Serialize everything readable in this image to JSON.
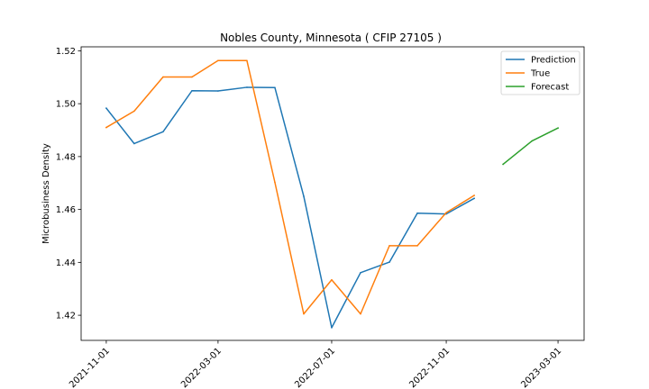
{
  "chart_data": {
    "type": "line",
    "title": "Nobles County, Minnesota ( CFIP 27105 )",
    "xlabel": "",
    "ylabel": "Microbusiness Density",
    "x_ticks": [
      "2021-11-01",
      "2022-03-01",
      "2022-07-01",
      "2022-11-01",
      "2023-03-01"
    ],
    "y_ticks": [
      "1.42",
      "1.44",
      "1.46",
      "1.48",
      "1.50",
      "1.52"
    ],
    "ylim": [
      1.4105,
      1.5215
    ],
    "xlim": [
      "2021-10-05",
      "2023-03-29"
    ],
    "grid": false,
    "legend_position": "top-right",
    "series": [
      {
        "name": "Prediction",
        "color": "#1f77b4",
        "x": [
          "2021-11-01",
          "2021-12-01",
          "2022-01-01",
          "2022-02-01",
          "2022-03-01",
          "2022-04-01",
          "2022-05-01",
          "2022-06-01",
          "2022-07-01",
          "2022-08-01",
          "2022-09-01",
          "2022-10-01",
          "2022-11-01",
          "2022-12-01"
        ],
        "values": [
          1.4983,
          1.4849,
          1.4894,
          1.5049,
          1.5048,
          1.5062,
          1.5061,
          1.465,
          1.4153,
          1.4361,
          1.4401,
          1.4586,
          1.4583,
          1.4642
        ]
      },
      {
        "name": "True",
        "color": "#ff7f0e",
        "x": [
          "2021-11-01",
          "2021-12-01",
          "2022-01-01",
          "2022-02-01",
          "2022-03-01",
          "2022-04-01",
          "2022-05-01",
          "2022-06-01",
          "2022-07-01",
          "2022-08-01",
          "2022-09-01",
          "2022-10-01",
          "2022-11-01",
          "2022-12-01"
        ],
        "values": [
          1.491,
          1.4972,
          1.5101,
          1.5101,
          1.5163,
          1.5163,
          1.4703,
          1.4205,
          1.4334,
          1.4205,
          1.4463,
          1.4463,
          1.4588,
          1.4653
        ]
      },
      {
        "name": "Forecast",
        "color": "#2ca02c",
        "x": [
          "2023-01-01",
          "2023-02-01",
          "2023-03-01"
        ],
        "values": [
          1.4771,
          1.4859,
          1.4908
        ]
      }
    ]
  }
}
